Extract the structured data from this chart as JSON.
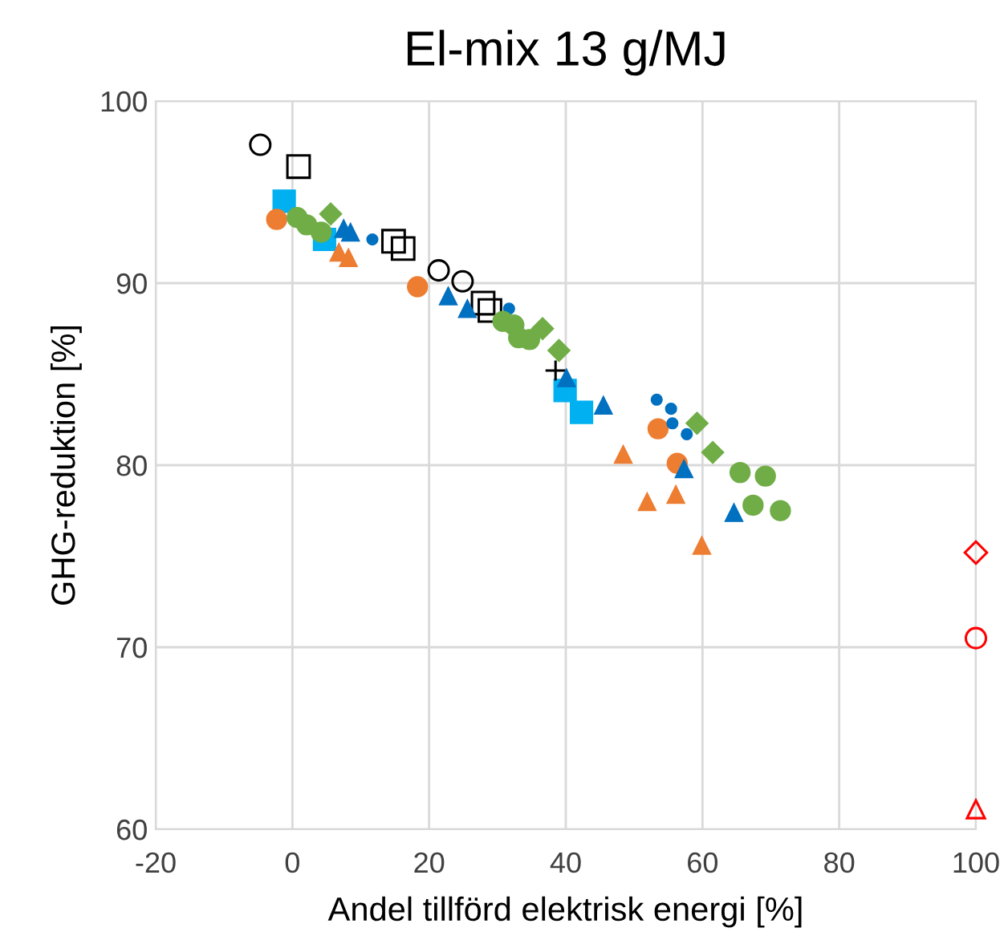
{
  "chart_data": {
    "type": "scatter",
    "title": "El-mix 13 g/MJ",
    "xlabel": "Andel tillförd elektrisk energi [%]",
    "ylabel": "GHG-reduktion [%]",
    "xlim": [
      -20,
      100
    ],
    "xticks": [
      -20,
      0,
      20,
      40,
      60,
      80,
      100
    ],
    "ylim": [
      60,
      100
    ],
    "yticks": [
      60,
      70,
      80,
      90,
      100
    ],
    "grid": true,
    "series": [
      {
        "color": "#000000",
        "marker": "circle",
        "x": [
          -4.7,
          21.4,
          24.9
        ],
        "values": [
          97.6,
          90.7,
          90.1
        ]
      },
      {
        "color": "#000000",
        "marker": "square",
        "x": [
          0.9,
          14.8,
          16.2,
          27.9,
          28.9
        ],
        "values": [
          96.4,
          92.3,
          91.9,
          88.9,
          88.5
        ]
      },
      {
        "color": "#00b0f0",
        "marker": "square",
        "x": [
          -1.2,
          4.7,
          39.9,
          42.3
        ],
        "values": [
          94.5,
          92.4,
          84.1,
          82.9
        ]
      },
      {
        "color": "#000000",
        "marker": "cross",
        "x": [
          38.5
        ],
        "values": [
          85.2
        ]
      },
      {
        "color": "#ed7d31",
        "marker": "circle",
        "x": [
          -2.3,
          18.3,
          53.5,
          56.3
        ],
        "values": [
          93.5,
          89.8,
          82.0,
          80.1
        ]
      },
      {
        "color": "#ed7d31",
        "marker": "triangle",
        "x": [
          6.8,
          8.2,
          48.4,
          51.9,
          56.1,
          59.9
        ],
        "values": [
          91.7,
          91.4,
          80.6,
          78.0,
          78.4,
          75.6
        ]
      },
      {
        "color": "#0070c0",
        "marker": "triangle",
        "x": [
          7.5,
          8.5,
          22.8,
          25.6,
          40.1,
          45.5,
          57.3,
          64.6
        ],
        "values": [
          93.0,
          92.8,
          89.3,
          88.6,
          84.8,
          83.3,
          79.8,
          77.4
        ]
      },
      {
        "color": "#0070c0",
        "marker": "circle",
        "x": [
          11.7,
          31.7,
          53.3,
          55.4,
          55.6,
          57.7
        ],
        "values": [
          92.4,
          88.6,
          83.6,
          83.1,
          82.3,
          81.7
        ]
      },
      {
        "color": "#70ad47",
        "marker": "circle",
        "x": [
          0.7,
          2.1,
          4.2,
          30.8,
          32.4,
          33.1,
          34.7,
          65.5,
          69.2,
          67.4,
          71.4
        ],
        "values": [
          93.6,
          93.2,
          92.8,
          87.9,
          87.7,
          87.0,
          86.9,
          79.6,
          79.4,
          77.8,
          77.5
        ]
      },
      {
        "color": "#70ad47",
        "marker": "diamond",
        "x": [
          5.6,
          36.6,
          39.0,
          59.2,
          61.5
        ],
        "values": [
          93.8,
          87.5,
          86.3,
          82.3,
          80.7
        ]
      },
      {
        "color": "#ff0000",
        "marker": "diamond",
        "x": [
          100
        ],
        "values": [
          75.2
        ]
      },
      {
        "color": "#ff0000",
        "marker": "circle",
        "x": [
          100
        ],
        "values": [
          70.5
        ]
      },
      {
        "color": "#ff0000",
        "marker": "triangle",
        "x": [
          100
        ],
        "values": [
          61.1
        ]
      }
    ]
  }
}
